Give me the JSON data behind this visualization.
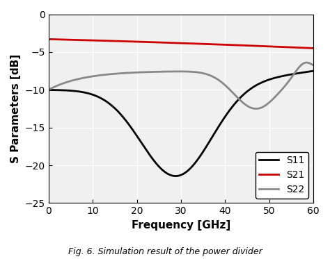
{
  "title": "",
  "caption": "Fig. 6. Simulation result of the power divider",
  "xlabel": "Frequency [GHz]",
  "ylabel": "S Parameters [dB]",
  "xlim": [
    0,
    60
  ],
  "ylim": [
    -25,
    0
  ],
  "xticks": [
    0,
    10,
    20,
    30,
    40,
    50,
    60
  ],
  "yticks": [
    0,
    -5,
    -10,
    -15,
    -20,
    -25
  ],
  "grid": true,
  "legend": [
    "S11",
    "S21",
    "S22"
  ],
  "colors": {
    "S11": "#000000",
    "S21": "#cc0000",
    "S22": "#888888"
  },
  "linewidth": 2.0,
  "background_color": "#f0f0f0"
}
